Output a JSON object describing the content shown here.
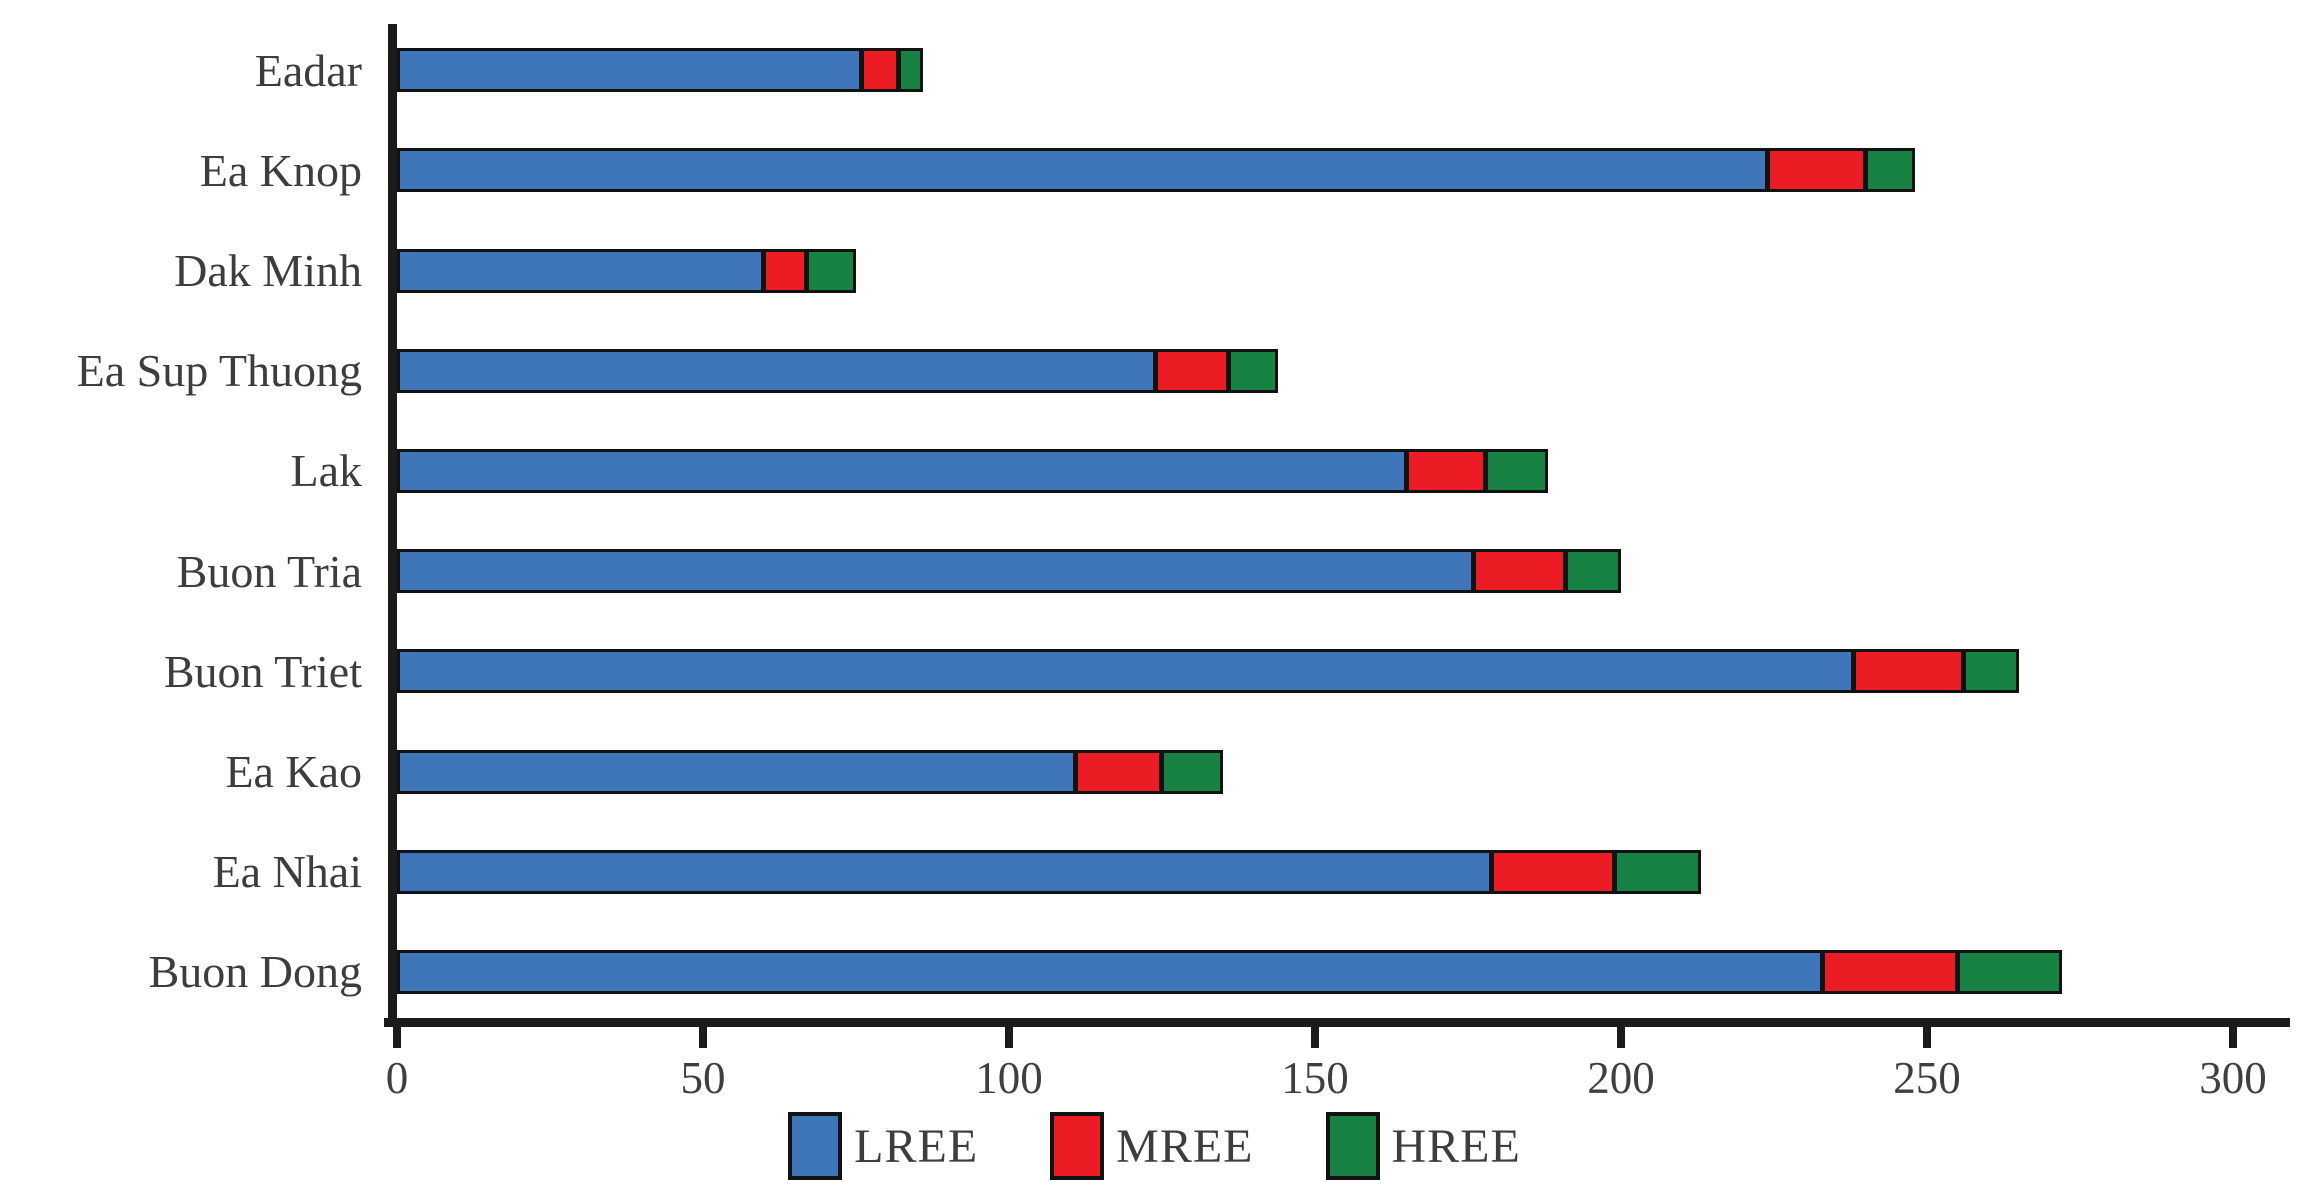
{
  "chart_data": {
    "type": "bar",
    "orientation": "horizontal",
    "stacked": true,
    "title": "",
    "xlabel": "",
    "ylabel": "",
    "categories": [
      "Eadar",
      "Ea Knop",
      "Dak Minh",
      "Ea Sup Thuong",
      "Lak",
      "Buon Tria",
      "Buon Triet",
      "Ea Kao",
      "Ea Nhai",
      "Buon Dong"
    ],
    "series": [
      {
        "name": "LREE",
        "color": "#3E76B9",
        "values": [
          76,
          224,
          60,
          124,
          165,
          176,
          238,
          111,
          179,
          233
        ]
      },
      {
        "name": "MREE",
        "color": "#EC1C24",
        "values": [
          6,
          16,
          7,
          12,
          13,
          15,
          18,
          14,
          20,
          22
        ]
      },
      {
        "name": "HREE",
        "color": "#178243",
        "values": [
          4,
          8,
          8,
          8,
          10,
          9,
          9,
          10,
          14,
          17
        ]
      }
    ],
    "totals": [
      86,
      248,
      75,
      144,
      188,
      200,
      265,
      135,
      213,
      272
    ],
    "xlim": [
      0,
      300
    ],
    "xticks": [
      "0",
      "50",
      "100",
      "150",
      "200",
      "250",
      "300"
    ],
    "xtick_values": [
      0,
      50,
      100,
      150,
      200,
      250,
      300
    ],
    "grid": false,
    "legend_position": "bottom"
  },
  "colors": {
    "background": "#ffffff",
    "axis": "#1b1b1b",
    "bar_border": "#121212",
    "text": "#3d3d3d"
  }
}
